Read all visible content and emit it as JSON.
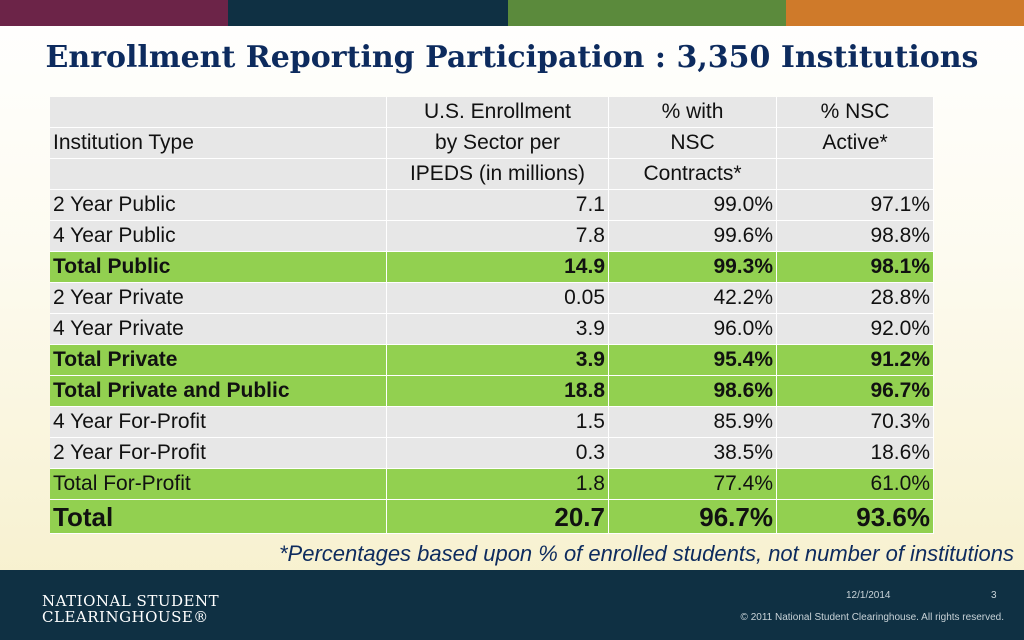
{
  "colors": {
    "bar1": "#6c2448",
    "bar2": "#0f3043",
    "bar3": "#5b8a3c",
    "bar4": "#cf7a2a",
    "green_row": "#92d050",
    "gray_row": "#e7e7e7",
    "title": "#0d2b5e",
    "footer": "#0f3043"
  },
  "title": "Enrollment Reporting Participation : 3,350 Institutions",
  "table": {
    "header": {
      "col1": "Institution Type",
      "col2_lines": [
        "U.S. Enrollment",
        "by Sector per",
        "IPEDS (in millions)"
      ],
      "col3_lines": [
        "% with",
        "NSC",
        "Contracts*"
      ],
      "col4_lines": [
        "% NSC",
        "Active*"
      ]
    },
    "rows": [
      {
        "type": "2 Year Public",
        "enrollment": "7.1",
        "contracts": "99.0%",
        "active": "97.1%"
      },
      {
        "type": "4 Year Public",
        "enrollment": "7.8",
        "contracts": "99.6%",
        "active": "98.8%"
      },
      {
        "type": "Total Public",
        "enrollment": "14.9",
        "contracts": "99.3%",
        "active": "98.1%"
      },
      {
        "type": "2 Year Private",
        "enrollment": "0.05",
        "contracts": "42.2%",
        "active": "28.8%"
      },
      {
        "type": "4 Year Private",
        "enrollment": "3.9",
        "contracts": "96.0%",
        "active": "92.0%"
      },
      {
        "type": "Total Private",
        "enrollment": "3.9",
        "contracts": "95.4%",
        "active": "91.2%"
      },
      {
        "type": "Total Private and Public",
        "enrollment": "18.8",
        "contracts": "98.6%",
        "active": "96.7%"
      },
      {
        "type": "4 Year For-Profit",
        "enrollment": "1.5",
        "contracts": "85.9%",
        "active": "70.3%"
      },
      {
        "type": "2 Year For-Profit",
        "enrollment": "0.3",
        "contracts": "38.5%",
        "active": "18.6%"
      },
      {
        "type": "Total For-Profit",
        "enrollment": "1.8",
        "contracts": "77.4%",
        "active": "61.0%"
      },
      {
        "type": "Total",
        "enrollment": "20.7",
        "contracts": "96.7%",
        "active": "93.6%"
      }
    ]
  },
  "footnote": "*Percentages based upon % of enrolled students, not number of institutions",
  "footer": {
    "logo_line1": "NATIONAL STUDENT",
    "logo_line2": "CLEARINGHOUSE®",
    "date": "12/1/2014",
    "slide_number": "3",
    "copyright": "© 2011 National Student Clearinghouse. All rights reserved."
  }
}
